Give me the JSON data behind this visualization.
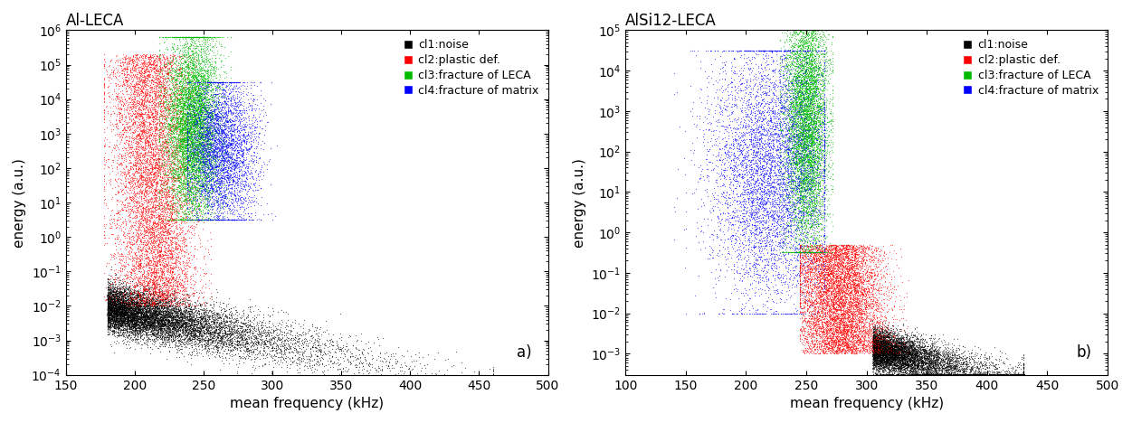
{
  "panel_a": {
    "title": "Al-LECA",
    "label": "a)",
    "xlim": [
      150,
      500
    ],
    "ylim": [
      0.0001,
      1000000.0
    ],
    "xticks": [
      150,
      200,
      250,
      300,
      350,
      400,
      450,
      500
    ]
  },
  "panel_b": {
    "title": "AlSi12-LECA",
    "label": "b)",
    "xlim": [
      100,
      500
    ],
    "ylim": [
      0.0003,
      100000.0
    ],
    "xticks": [
      100,
      150,
      200,
      250,
      300,
      350,
      400,
      450,
      500
    ]
  },
  "legend_labels": [
    "cl1:noise",
    "cl2:plastic def.",
    "cl3:fracture of LECA",
    "cl4:fracture of matrix"
  ],
  "legend_colors": [
    "#000000",
    "#ff0000",
    "#00bb00",
    "#0000ff"
  ],
  "xlabel": "mean frequency (kHz)",
  "ylabel": "energy (a.u.)",
  "marker_size": 0.8,
  "background_color": "#ffffff"
}
